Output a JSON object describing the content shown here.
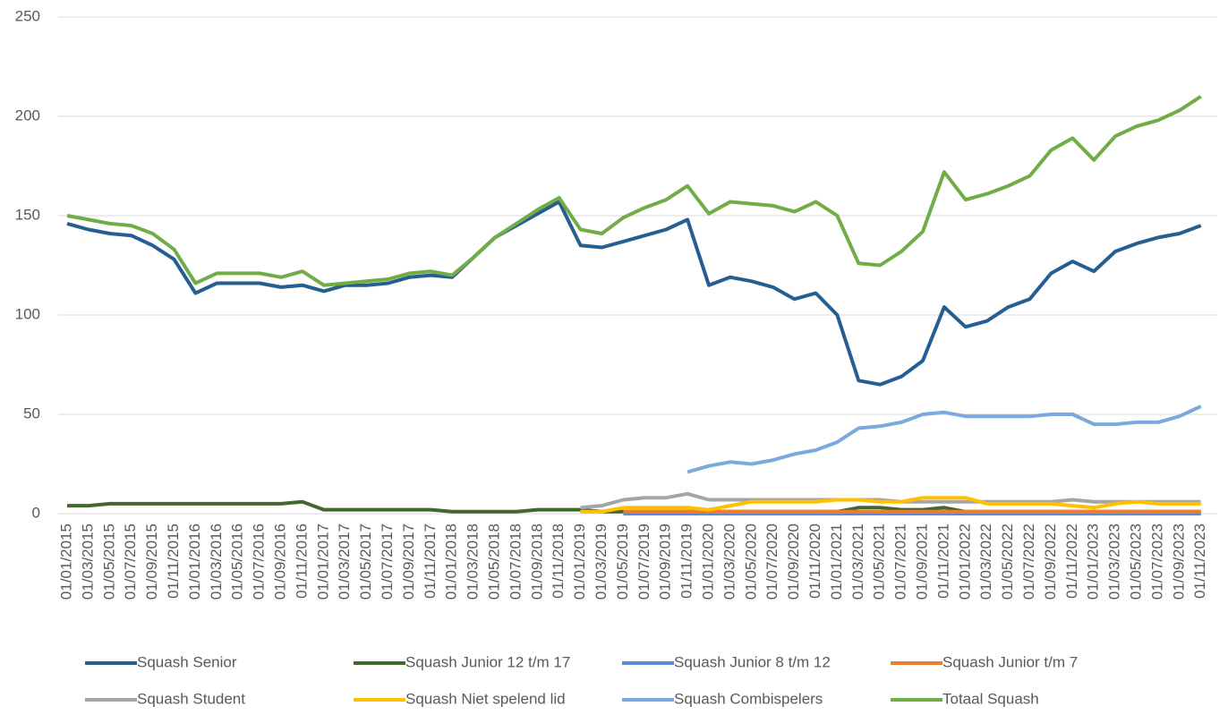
{
  "chart_data": {
    "type": "line",
    "categories": [
      "01/01/2015",
      "01/03/2015",
      "01/05/2015",
      "01/07/2015",
      "01/09/2015",
      "01/11/2015",
      "01/01/2016",
      "01/03/2016",
      "01/05/2016",
      "01/07/2016",
      "01/09/2016",
      "01/11/2016",
      "01/01/2017",
      "01/03/2017",
      "01/05/2017",
      "01/07/2017",
      "01/09/2017",
      "01/11/2017",
      "01/01/2018",
      "01/03/2018",
      "01/05/2018",
      "01/07/2018",
      "01/09/2018",
      "01/11/2018",
      "01/01/2019",
      "01/03/2019",
      "01/05/2019",
      "01/07/2019",
      "01/09/2019",
      "01/11/2019",
      "01/01/2020",
      "01/03/2020",
      "01/05/2020",
      "01/07/2020",
      "01/09/2020",
      "01/11/2020",
      "01/01/2021",
      "01/03/2021",
      "01/05/2021",
      "01/07/2021",
      "01/09/2021",
      "01/11/2021",
      "01/01/2022",
      "01/03/2022",
      "01/05/2022",
      "01/07/2022",
      "01/09/2022",
      "01/11/2022",
      "01/01/2023",
      "01/03/2023",
      "01/05/2023",
      "01/07/2023",
      "01/09/2023",
      "01/11/2023"
    ],
    "series": [
      {
        "name": "Squash Senior",
        "color": "#255e91",
        "values": [
          146,
          143,
          141,
          140,
          135,
          128,
          111,
          116,
          116,
          116,
          114,
          115,
          112,
          115,
          115,
          116,
          119,
          120,
          119,
          129,
          139,
          145,
          151,
          157,
          135,
          134,
          137,
          140,
          143,
          148,
          115,
          119,
          117,
          114,
          108,
          111,
          100,
          67,
          65,
          69,
          77,
          104,
          94,
          97,
          104,
          108,
          121,
          127,
          122,
          132,
          136,
          139,
          141,
          145
        ]
      },
      {
        "name": "Squash Junior 12 t/m 17",
        "color": "#43682b",
        "values": [
          4,
          4,
          5,
          5,
          5,
          5,
          5,
          5,
          5,
          5,
          5,
          6,
          2,
          2,
          2,
          2,
          2,
          2,
          1,
          1,
          1,
          1,
          2,
          2,
          2,
          1,
          1,
          1,
          1,
          1,
          1,
          1,
          1,
          1,
          1,
          1,
          1,
          3,
          3,
          2,
          2,
          3,
          1,
          1,
          1,
          1,
          1,
          1,
          1,
          1,
          1,
          1,
          1,
          1
        ]
      },
      {
        "name": "Squash Junior 8 t/m 12",
        "color": "#5b8bd6",
        "values": [
          null,
          null,
          null,
          null,
          null,
          null,
          null,
          null,
          null,
          null,
          null,
          null,
          null,
          null,
          null,
          null,
          null,
          null,
          null,
          null,
          null,
          null,
          null,
          null,
          null,
          null,
          0,
          0,
          0,
          0,
          0,
          0,
          0,
          0,
          0,
          0,
          0,
          0,
          0,
          0,
          0,
          0,
          0,
          0,
          0,
          0,
          0,
          0,
          0,
          0,
          0,
          0,
          0,
          0
        ]
      },
      {
        "name": "Squash Junior t/m 7",
        "color": "#ed7d31",
        "values": [
          null,
          null,
          null,
          null,
          null,
          null,
          null,
          null,
          null,
          null,
          null,
          null,
          null,
          null,
          null,
          null,
          null,
          null,
          null,
          null,
          null,
          null,
          null,
          null,
          null,
          null,
          1,
          1,
          1,
          1,
          1,
          1,
          1,
          1,
          1,
          1,
          1,
          1,
          1,
          1,
          1,
          1,
          1,
          1,
          1,
          1,
          1,
          1,
          1,
          1,
          1,
          1,
          1,
          1
        ]
      },
      {
        "name": "Squash Student",
        "color": "#a5a5a5",
        "values": [
          null,
          null,
          null,
          null,
          null,
          null,
          null,
          null,
          null,
          null,
          null,
          null,
          null,
          null,
          null,
          null,
          null,
          null,
          null,
          null,
          null,
          null,
          null,
          null,
          3,
          4,
          7,
          8,
          8,
          10,
          7,
          7,
          7,
          7,
          7,
          7,
          7,
          7,
          7,
          6,
          6,
          6,
          6,
          6,
          6,
          6,
          6,
          7,
          6,
          6,
          6,
          6,
          6,
          6
        ]
      },
      {
        "name": "Squash Niet spelend lid",
        "color": "#ffc000",
        "values": [
          null,
          null,
          null,
          null,
          null,
          null,
          null,
          null,
          null,
          null,
          null,
          null,
          null,
          null,
          null,
          null,
          null,
          null,
          null,
          null,
          null,
          null,
          null,
          null,
          1,
          1,
          3,
          3,
          3,
          3,
          2,
          4,
          6,
          6,
          6,
          6,
          7,
          7,
          6,
          6,
          8,
          8,
          8,
          5,
          5,
          5,
          5,
          4,
          3,
          5,
          6,
          5,
          5,
          5
        ]
      },
      {
        "name": "Squash Combispelers",
        "color": "#7ca9dd",
        "values": [
          null,
          null,
          null,
          null,
          null,
          null,
          null,
          null,
          null,
          null,
          null,
          null,
          null,
          null,
          null,
          null,
          null,
          null,
          null,
          null,
          null,
          null,
          null,
          null,
          null,
          null,
          null,
          null,
          null,
          21,
          24,
          26,
          25,
          27,
          30,
          32,
          36,
          43,
          44,
          46,
          50,
          51,
          49,
          49,
          49,
          49,
          50,
          50,
          45,
          45,
          46,
          46,
          49,
          54
        ]
      },
      {
        "name": "Totaal Squash",
        "color": "#70ad47",
        "values": [
          150,
          148,
          146,
          145,
          141,
          133,
          116,
          121,
          121,
          121,
          119,
          122,
          115,
          116,
          117,
          118,
          121,
          122,
          120,
          129,
          139,
          146,
          153,
          159,
          143,
          141,
          149,
          154,
          158,
          165,
          151,
          157,
          156,
          155,
          152,
          157,
          150,
          126,
          125,
          132,
          142,
          172,
          158,
          161,
          165,
          170,
          183,
          189,
          178,
          190,
          195,
          198,
          203,
          210
        ]
      }
    ],
    "ylim": [
      0,
      250
    ],
    "yticks": [
      0,
      50,
      100,
      150,
      200,
      250
    ],
    "grid": true
  }
}
